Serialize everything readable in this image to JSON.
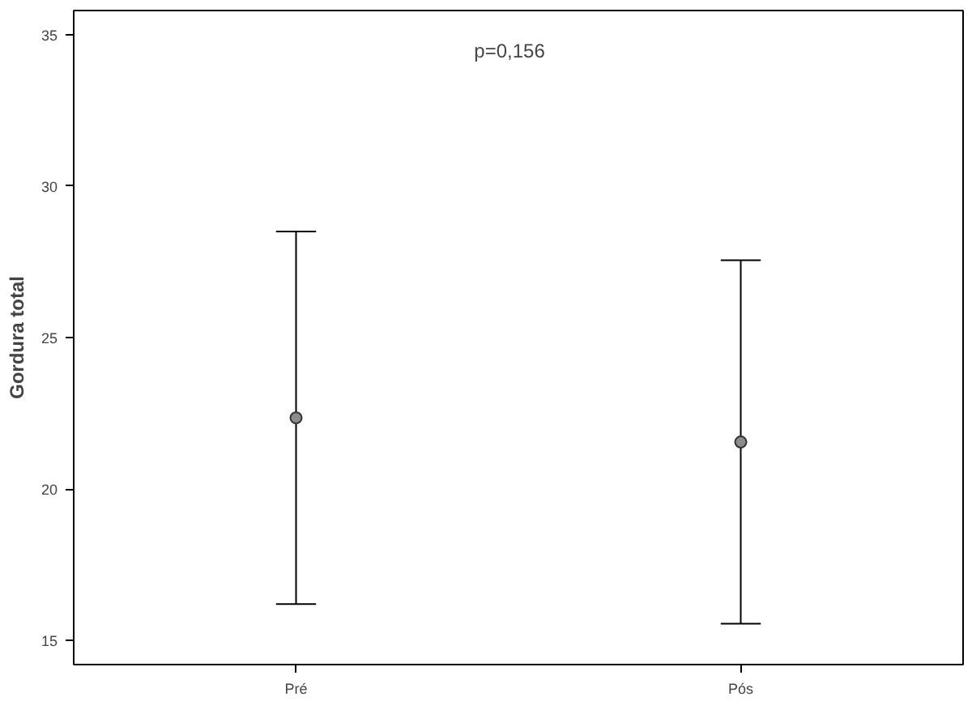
{
  "chart_data": {
    "type": "scatter",
    "ylabel": "Gordura total",
    "categories": [
      "Pré",
      "Pós"
    ],
    "series": [
      {
        "color": "#8c8c8c",
        "values": [
          22.35,
          21.55
        ],
        "errors": [
          [
            16.2,
            28.5
          ],
          [
            15.55,
            27.55
          ]
        ]
      }
    ],
    "ylim": [
      14.2,
      35.8
    ],
    "yticks": [
      15,
      20,
      25,
      30,
      35
    ],
    "grid": false,
    "marker": "circle",
    "annotations": [
      "p=0,156"
    ]
  }
}
